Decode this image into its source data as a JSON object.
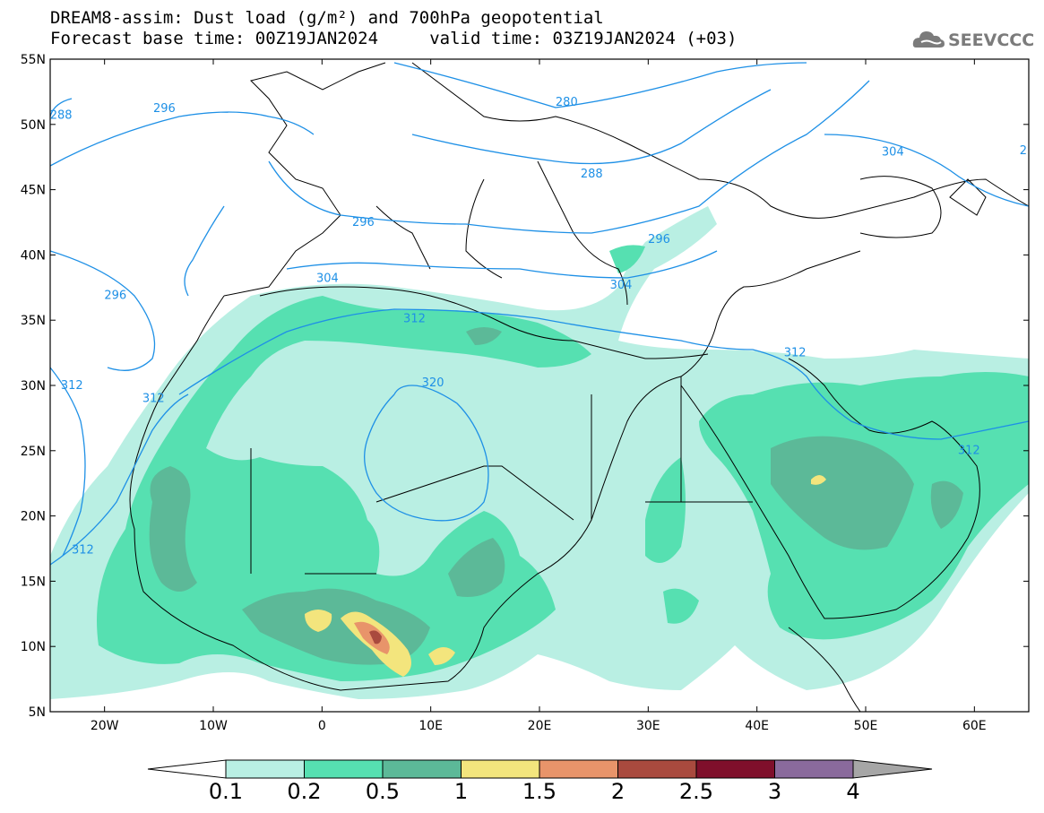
{
  "header": {
    "line1": "DREAM8-assim: Dust load (g/m²) and 700hPa geopotential",
    "line2": "Forecast base time: 00Z19JAN2024     valid time: 03Z19JAN2024 (+03)"
  },
  "logo": {
    "text": "SEEVCCC",
    "icon": "cloud-logo-icon"
  },
  "map": {
    "lon_range": [
      -25,
      65
    ],
    "lat_range": [
      5,
      55
    ],
    "lat_labels": [
      "55N",
      "50N",
      "45N",
      "40N",
      "35N",
      "30N",
      "25N",
      "20N",
      "15N",
      "10N",
      "5N"
    ],
    "lon_labels": [
      "20W",
      "10W",
      "0",
      "10E",
      "20E",
      "30E",
      "40E",
      "50E",
      "60E"
    ],
    "geopotential_contour_labels": [
      {
        "text": "288",
        "lon": -24,
        "lat": 50.5
      },
      {
        "text": "296",
        "lon": -14.5,
        "lat": 51.0
      },
      {
        "text": "280",
        "lon": 22.5,
        "lat": 51.5
      },
      {
        "text": "304",
        "lon": 52.5,
        "lat": 47.7
      },
      {
        "text": "2",
        "lon": 64.5,
        "lat": 47.8
      },
      {
        "text": "288",
        "lon": 24.8,
        "lat": 46.0
      },
      {
        "text": "296",
        "lon": 3.8,
        "lat": 42.3
      },
      {
        "text": "296",
        "lon": 31.0,
        "lat": 41.0
      },
      {
        "text": "304",
        "lon": 0.5,
        "lat": 38.0
      },
      {
        "text": "304",
        "lon": 27.5,
        "lat": 37.5
      },
      {
        "text": "296",
        "lon": -19.0,
        "lat": 36.7
      },
      {
        "text": "312",
        "lon": 8.5,
        "lat": 34.9
      },
      {
        "text": "312",
        "lon": 43.5,
        "lat": 32.3
      },
      {
        "text": "312",
        "lon": -23.0,
        "lat": 29.8
      },
      {
        "text": "320",
        "lon": 10.2,
        "lat": 30.0
      },
      {
        "text": "312",
        "lon": -15.5,
        "lat": 28.8
      },
      {
        "text": "312",
        "lon": 59.5,
        "lat": 24.8
      },
      {
        "text": "312",
        "lon": -22.0,
        "lat": 17.2
      }
    ]
  },
  "colorbar": {
    "levels": [
      "0.1",
      "0.2",
      "0.5",
      "1",
      "1.5",
      "2",
      "2.5",
      "3",
      "4"
    ],
    "colors": [
      "#b9efe3",
      "#56e0b1",
      "#5cb998",
      "#f3e57d",
      "#e8946a",
      "#a94a3e",
      "#7f0f2b",
      "#8a6a9c"
    ],
    "under_color": "#ffffff",
    "over_color": "#a6a6a6"
  },
  "colors": {
    "geopotential_contour": "#1e90e6",
    "coastline": "#000000"
  }
}
